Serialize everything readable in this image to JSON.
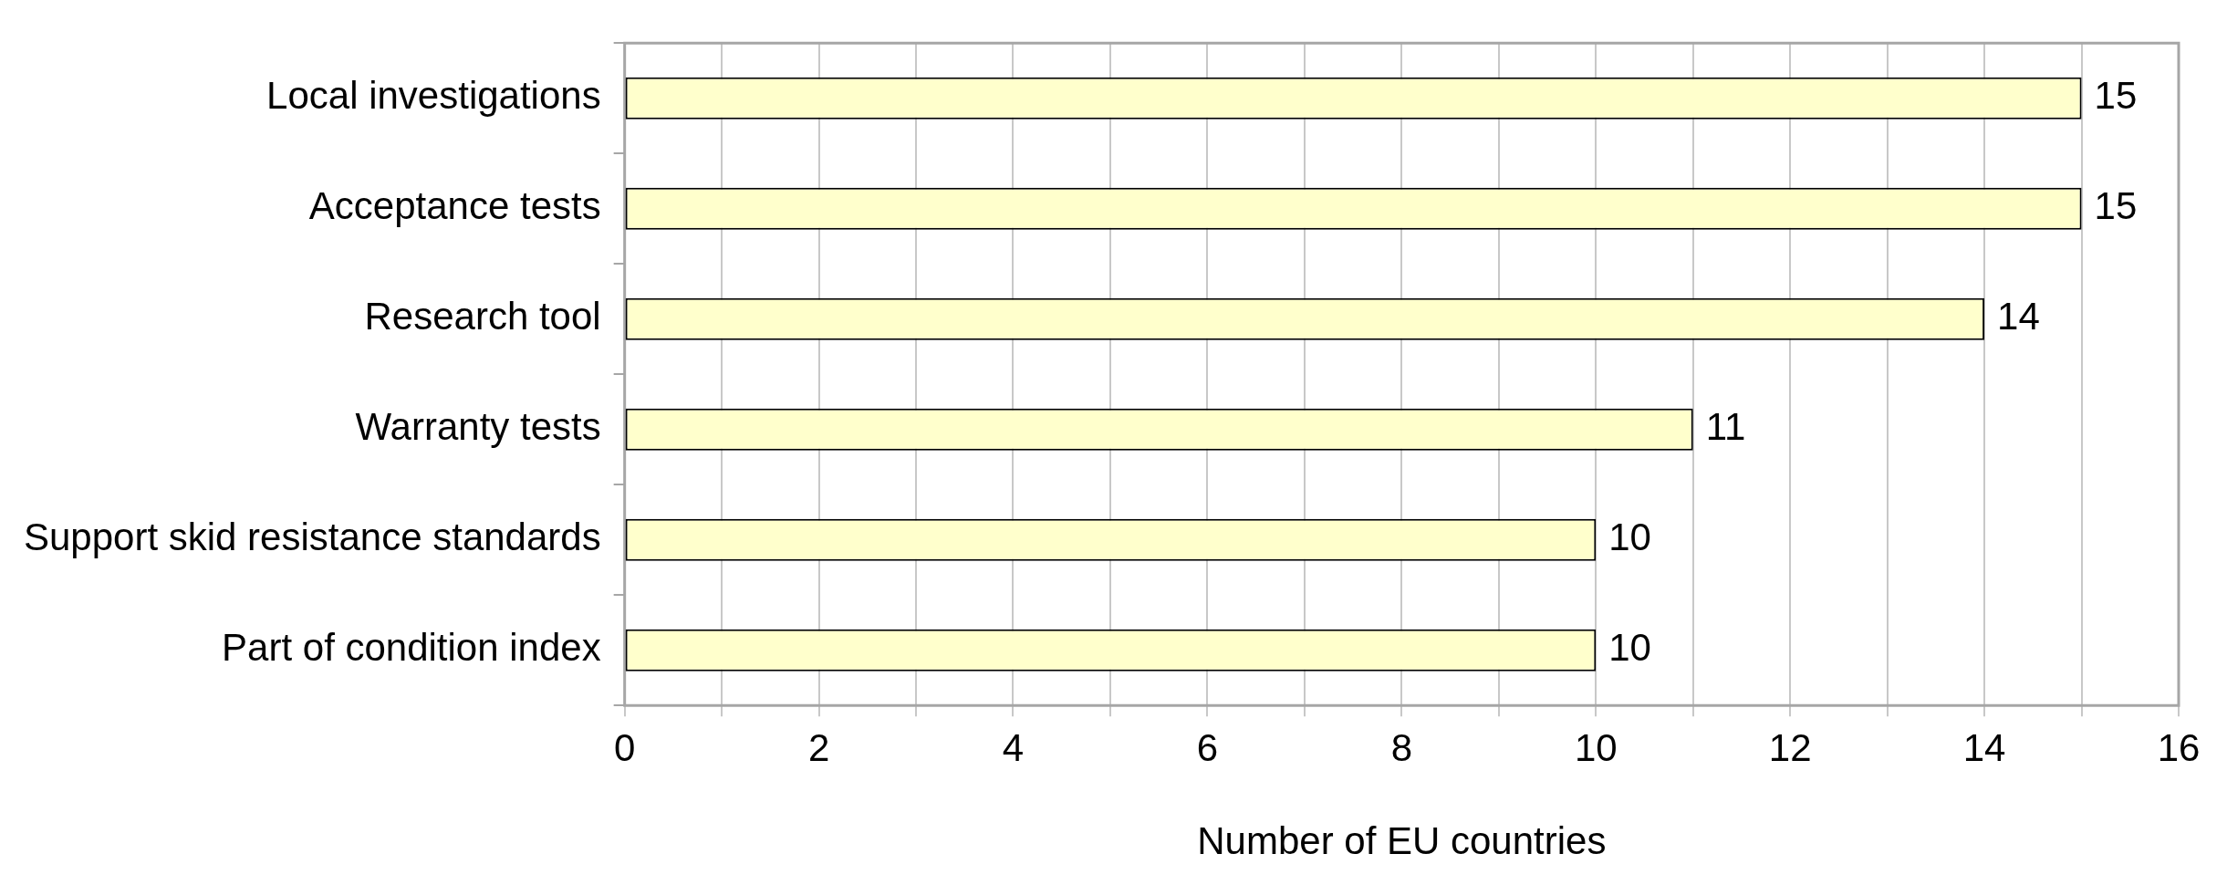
{
  "chart_data": {
    "type": "bar",
    "orientation": "horizontal",
    "xlabel": "Number of EU countries",
    "categories": [
      "Local investigations",
      "Acceptance tests",
      "Research tool",
      "Warranty tests",
      "Support skid resistance standards",
      "Part of condition index"
    ],
    "values": [
      15,
      15,
      14,
      11,
      10,
      10
    ],
    "color": "#ffffcc",
    "xlim": [
      0,
      16
    ],
    "xticks": [
      0,
      {
        "value": 1,
        "label": null
      },
      2,
      {
        "value": 3,
        "label": null
      },
      4,
      {
        "value": 5,
        "label": null
      },
      6,
      {
        "value": 7,
        "label": null
      },
      8,
      {
        "value": 9,
        "label": null
      },
      10,
      {
        "value": 11,
        "label": null
      },
      12,
      {
        "value": 13,
        "label": null
      },
      14,
      {
        "value": 15,
        "label": null
      },
      16
    ],
    "grid": "x",
    "data_labels": true,
    "legend": false
  }
}
